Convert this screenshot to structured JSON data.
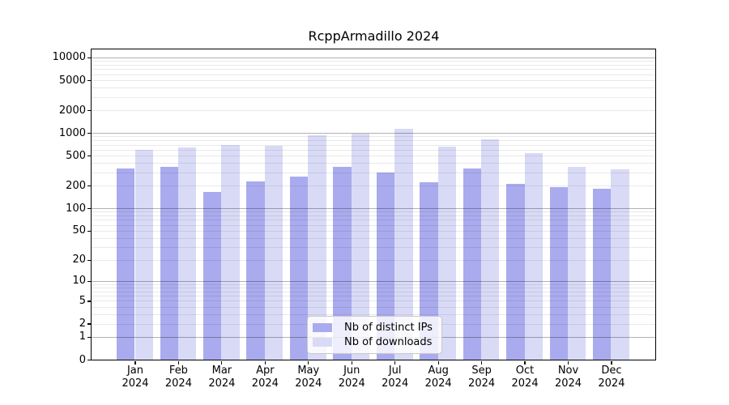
{
  "title": "RcppArmadillo 2024",
  "colors": {
    "distinct_ips_bar": "#a9abee",
    "downloads_bar": "#d9daf6",
    "grid_major": "#b0b0b0",
    "grid_minor": "#e8e8e8",
    "spine": "#000000",
    "legend_border": "#c9c9c9"
  },
  "chart_data": {
    "type": "bar",
    "title": "RcppArmadillo 2024",
    "categories": [
      "Jan",
      "Feb",
      "Mar",
      "Apr",
      "May",
      "Jun",
      "Jul",
      "Aug",
      "Sep",
      "Oct",
      "Nov",
      "Dec"
    ],
    "year_label": "2024",
    "series": [
      {
        "name": "Nb of distinct IPs",
        "color": "#a9abee",
        "values": [
          335,
          360,
          165,
          227,
          265,
          360,
          300,
          221,
          338,
          212,
          190,
          180
        ]
      },
      {
        "name": "Nb of downloads",
        "color": "#d9daf6",
        "values": [
          600,
          650,
          690,
          675,
          935,
          975,
          1130,
          655,
          830,
          540,
          357,
          330
        ]
      }
    ],
    "yscale": "log10(1+y)",
    "ylim": [
      0,
      13000
    ],
    "ytick_values": [
      0,
      1,
      2,
      5,
      10,
      20,
      50,
      100,
      200,
      500,
      1000,
      2000,
      5000,
      10000
    ],
    "grid": true,
    "legend_location": "inside lower-center"
  }
}
